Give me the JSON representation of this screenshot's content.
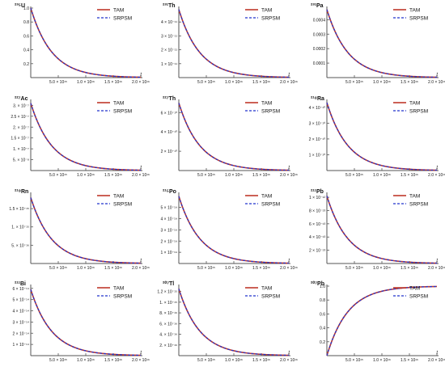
{
  "legend_labels": [
    "TAM",
    "SRPSM"
  ],
  "x_tick_labels": [
    "5.0 × 10¹⁵",
    "1.0 × 10¹⁶",
    "1.5 × 10¹⁶",
    "2.0 × 10¹⁶"
  ],
  "x_axis_label": "t",
  "colors": {
    "tam": "#c0392b",
    "srpsm": "#2233cc",
    "axis": "#555555",
    "text": "#111111"
  },
  "chart_data": [
    {
      "type": "line",
      "title": "²³⁵U",
      "xlabel": "t",
      "trend": "decay",
      "xlim": [
        0,
        2e+16
      ],
      "ylim": [
        0,
        1.0
      ],
      "yticks": [
        0.2,
        0.4,
        0.6,
        0.8,
        1.0
      ],
      "ytick_labels": [
        "0.2",
        "0.4",
        "0.6",
        "0.8",
        "1.0"
      ],
      "series": [
        {
          "name": "TAM",
          "x": [
            0,
            2500000000000000.0,
            5000000000000000.0,
            7500000000000000.0,
            1e+16,
            1.25e+16,
            1.5e+16,
            1.75e+16,
            2e+16
          ],
          "y": [
            1.0,
            0.52,
            0.27,
            0.14,
            0.07,
            0.04,
            0.02,
            0.01,
            0.005
          ]
        },
        {
          "name": "SRPSM",
          "x": [
            0,
            2500000000000000.0,
            5000000000000000.0,
            7500000000000000.0,
            1e+16,
            1.25e+16,
            1.5e+16,
            1.75e+16,
            2e+16
          ],
          "y": [
            1.0,
            0.52,
            0.27,
            0.14,
            0.07,
            0.04,
            0.02,
            0.01,
            0.005
          ]
        }
      ]
    },
    {
      "type": "line",
      "title": "²³¹Th",
      "xlabel": "t",
      "trend": "decay",
      "xlim": [
        0,
        2e+16
      ],
      "ylim": [
        0,
        5e-11
      ],
      "yticks": [
        1e-11,
        2e-11,
        3e-11,
        4e-11
      ],
      "ytick_labels": [
        "1 × 10⁻¹¹",
        "2 × 10⁻¹¹",
        "3 × 10⁻¹¹",
        "4 × 10⁻¹¹"
      ],
      "series": [
        {
          "name": "TAM",
          "x": [
            0,
            2500000000000000.0,
            5000000000000000.0,
            7500000000000000.0,
            1e+16,
            1.25e+16,
            1.5e+16,
            1.75e+16,
            2e+16
          ],
          "y": [
            4.9e-11,
            2.55e-11,
            1.32e-11,
            6.9e-12,
            3.6e-12,
            1.9e-12,
            9.8e-13,
            5.1e-13,
            2.6e-13
          ]
        },
        {
          "name": "SRPSM",
          "x": [
            0,
            2500000000000000.0,
            5000000000000000.0,
            7500000000000000.0,
            1e+16,
            1.25e+16,
            1.5e+16,
            1.75e+16,
            2e+16
          ],
          "y": [
            4.9e-11,
            2.55e-11,
            1.32e-11,
            6.9e-12,
            3.6e-12,
            1.9e-12,
            9.8e-13,
            5.1e-13,
            2.6e-13
          ]
        }
      ]
    },
    {
      "type": "line",
      "title": "²³¹Pa",
      "xlabel": "t",
      "trend": "decay",
      "xlim": [
        0,
        2e+16
      ],
      "ylim": [
        0,
        0.00048
      ],
      "yticks": [
        0.0001,
        0.0002,
        0.0003,
        0.0004
      ],
      "ytick_labels": [
        "0.0001",
        "0.0002",
        "0.0003",
        "0.0004"
      ],
      "series": [
        {
          "name": "TAM",
          "x": [
            0,
            2500000000000000.0,
            5000000000000000.0,
            7500000000000000.0,
            1e+16,
            1.25e+16,
            1.5e+16,
            1.75e+16,
            2e+16
          ],
          "y": [
            0.00047,
            0.000245,
            0.000127,
            6.6e-05,
            3.4e-05,
            1.8e-05,
            9.4e-06,
            4.9e-06,
            2.5e-06
          ]
        },
        {
          "name": "SRPSM",
          "x": [
            0,
            2500000000000000.0,
            5000000000000000.0,
            7500000000000000.0,
            1e+16,
            1.25e+16,
            1.5e+16,
            1.75e+16,
            2e+16
          ],
          "y": [
            0.00047,
            0.000245,
            0.000127,
            6.6e-05,
            3.4e-05,
            1.8e-05,
            9.4e-06,
            4.9e-06,
            2.5e-06
          ]
        }
      ]
    },
    {
      "type": "line",
      "title": "²²⁷Ac",
      "xlabel": "t",
      "trend": "decay",
      "xlim": [
        0,
        2e+16
      ],
      "ylim": [
        0,
        3.2e-07
      ],
      "yticks": [
        5e-08,
        1e-07,
        1.5e-07,
        2e-07,
        2.5e-07,
        3e-07
      ],
      "ytick_labels": [
        "5. × 10⁻⁸",
        "1. × 10⁻⁷",
        "1.5 × 10⁻⁷",
        "2. × 10⁻⁷",
        "2.5 × 10⁻⁷",
        "3. × 10⁻⁷"
      ],
      "series": [
        {
          "name": "TAM",
          "x": [
            0,
            2500000000000000.0,
            5000000000000000.0,
            7500000000000000.0,
            1e+16,
            1.25e+16,
            1.5e+16,
            1.75e+16,
            2e+16
          ],
          "y": [
            3.1e-07,
            1.61e-07,
            8.4e-08,
            4.4e-08,
            2.3e-08,
            1.2e-08,
            6.2e-09,
            3.2e-09,
            1.7e-09
          ]
        },
        {
          "name": "SRPSM",
          "x": [
            0,
            2500000000000000.0,
            5000000000000000.0,
            7500000000000000.0,
            1e+16,
            1.25e+16,
            1.5e+16,
            1.75e+16,
            2e+16
          ],
          "y": [
            3.1e-07,
            1.61e-07,
            8.4e-08,
            4.4e-08,
            2.3e-08,
            1.2e-08,
            6.2e-09,
            3.2e-09,
            1.7e-09
          ]
        }
      ]
    },
    {
      "type": "line",
      "title": "²²⁷Th",
      "xlabel": "t",
      "trend": "decay",
      "xlim": [
        0,
        2e+16
      ],
      "ylim": [
        0,
        7.2e-10
      ],
      "yticks": [
        2e-10,
        4e-10,
        6e-10
      ],
      "ytick_labels": [
        "2 × 10⁻¹⁰",
        "4 × 10⁻¹⁰",
        "6 × 10⁻¹⁰"
      ],
      "series": [
        {
          "name": "TAM",
          "x": [
            0,
            2500000000000000.0,
            5000000000000000.0,
            7500000000000000.0,
            1e+16,
            1.25e+16,
            1.5e+16,
            1.75e+16,
            2e+16
          ],
          "y": [
            7e-10,
            3.64e-10,
            1.89e-10,
            9.8e-11,
            5.1e-11,
            2.7e-11,
            1.4e-11,
            7.3e-12,
            3.8e-12
          ]
        },
        {
          "name": "SRPSM",
          "x": [
            0,
            2500000000000000.0,
            5000000000000000.0,
            7500000000000000.0,
            1e+16,
            1.25e+16,
            1.5e+16,
            1.75e+16,
            2e+16
          ],
          "y": [
            7e-10,
            3.64e-10,
            1.89e-10,
            9.8e-11,
            5.1e-11,
            2.7e-11,
            1.4e-11,
            7.3e-12,
            3.8e-12
          ]
        }
      ]
    },
    {
      "type": "line",
      "title": "²¹⁸Ra",
      "xlabel": "t",
      "trend": "decay",
      "xlim": [
        0,
        2e+16
      ],
      "ylim": [
        0,
        4.4e-10
      ],
      "yticks": [
        1e-10,
        2e-10,
        3e-10,
        4e-10
      ],
      "ytick_labels": [
        "1 × 10⁻¹⁰",
        "2 × 10⁻¹⁰",
        "3 × 10⁻¹⁰",
        "4 × 10⁻¹⁰"
      ],
      "series": [
        {
          "name": "TAM",
          "x": [
            0,
            2500000000000000.0,
            5000000000000000.0,
            7500000000000000.0,
            1e+16,
            1.25e+16,
            1.5e+16,
            1.75e+16,
            2e+16
          ],
          "y": [
            4.3e-10,
            2.24e-10,
            1.16e-10,
            6e-11,
            3.1e-11,
            1.6e-11,
            8.5e-12,
            4.4e-12,
            2.3e-12
          ]
        },
        {
          "name": "SRPSM",
          "x": [
            0,
            2500000000000000.0,
            5000000000000000.0,
            7500000000000000.0,
            1e+16,
            1.25e+16,
            1.5e+16,
            1.75e+16,
            2e+16
          ],
          "y": [
            4.3e-10,
            2.24e-10,
            1.16e-10,
            6e-11,
            3.1e-11,
            1.6e-11,
            8.5e-12,
            4.4e-12,
            2.3e-12
          ]
        }
      ]
    },
    {
      "type": "line",
      "title": "²¹⁹Rn",
      "xlabel": "t",
      "trend": "decay",
      "xlim": [
        0,
        2e+16
      ],
      "ylim": [
        0,
        1.9e-15
      ],
      "yticks": [
        5e-16,
        1e-15,
        1.5e-15
      ],
      "ytick_labels": [
        "5. × 10⁻¹⁶",
        "1. × 10⁻¹⁵",
        "1.5 × 10⁻¹⁵"
      ],
      "series": [
        {
          "name": "TAM",
          "x": [
            0,
            2500000000000000.0,
            5000000000000000.0,
            7500000000000000.0,
            1e+16,
            1.25e+16,
            1.5e+16,
            1.75e+16,
            2e+16
          ],
          "y": [
            1.8e-15,
            9.4e-16,
            4.9e-16,
            2.5e-16,
            1.3e-16,
            6.9e-17,
            3.6e-17,
            1.9e-17,
            9.7e-18
          ]
        },
        {
          "name": "SRPSM",
          "x": [
            0,
            2500000000000000.0,
            5000000000000000.0,
            7500000000000000.0,
            1e+16,
            1.25e+16,
            1.5e+16,
            1.75e+16,
            2e+16
          ],
          "y": [
            1.8e-15,
            9.4e-16,
            4.9e-16,
            2.5e-16,
            1.3e-16,
            6.9e-17,
            3.6e-17,
            1.9e-17,
            9.7e-18
          ]
        }
      ]
    },
    {
      "type": "line",
      "title": "²¹⁵Po",
      "xlabel": "t",
      "trend": "decay",
      "xlim": [
        0,
        2e+16
      ],
      "ylim": [
        0,
        6.2e-19
      ],
      "yticks": [
        1e-19,
        2e-19,
        3e-19,
        4e-19,
        5e-19
      ],
      "ytick_labels": [
        "1 × 10⁻¹⁹",
        "2 × 10⁻¹⁹",
        "3 × 10⁻¹⁹",
        "4 × 10⁻¹⁹",
        "5 × 10⁻¹⁹"
      ],
      "series": [
        {
          "name": "TAM",
          "x": [
            0,
            2500000000000000.0,
            5000000000000000.0,
            7500000000000000.0,
            1e+16,
            1.25e+16,
            1.5e+16,
            1.75e+16,
            2e+16
          ],
          "y": [
            6e-19,
            3.1e-19,
            1.6e-19,
            8.4e-20,
            4.4e-20,
            2.3e-20,
            1.2e-20,
            6.2e-21,
            3.2e-21
          ]
        },
        {
          "name": "SRPSM",
          "x": [
            0,
            2500000000000000.0,
            5000000000000000.0,
            7500000000000000.0,
            1e+16,
            1.25e+16,
            1.5e+16,
            1.75e+16,
            2e+16
          ],
          "y": [
            6e-19,
            3.1e-19,
            1.6e-19,
            8.4e-20,
            4.4e-20,
            2.3e-20,
            1.2e-20,
            6.2e-21,
            3.2e-21
          ]
        }
      ]
    },
    {
      "type": "line",
      "title": "²¹¹Pb",
      "xlabel": "t",
      "trend": "decay",
      "xlim": [
        0,
        2e+16
      ],
      "ylim": [
        0,
        1.05e-12
      ],
      "yticks": [
        2e-13,
        4e-13,
        6e-13,
        8e-13,
        1e-12
      ],
      "ytick_labels": [
        "2 × 10⁻¹³",
        "4 × 10⁻¹³",
        "6 × 10⁻¹³",
        "8 × 10⁻¹³",
        "1 × 10⁻¹²"
      ],
      "series": [
        {
          "name": "TAM",
          "x": [
            0,
            2500000000000000.0,
            5000000000000000.0,
            7500000000000000.0,
            1e+16,
            1.25e+16,
            1.5e+16,
            1.75e+16,
            2e+16
          ],
          "y": [
            1.02e-12,
            5.3e-13,
            2.76e-13,
            1.43e-13,
            7.5e-14,
            3.9e-14,
            2e-14,
            1.05e-14,
            5.5e-15
          ]
        },
        {
          "name": "SRPSM",
          "x": [
            0,
            2500000000000000.0,
            5000000000000000.0,
            7500000000000000.0,
            1e+16,
            1.25e+16,
            1.5e+16,
            1.75e+16,
            2e+16
          ],
          "y": [
            1.02e-12,
            5.3e-13,
            2.76e-13,
            1.43e-13,
            7.5e-14,
            3.9e-14,
            2e-14,
            1.05e-14,
            5.5e-15
          ]
        }
      ]
    },
    {
      "type": "line",
      "title": "²¹¹Bi",
      "xlabel": "t",
      "trend": "decay",
      "xlim": [
        0,
        2e+16
      ],
      "ylim": [
        0,
        6.2e-14
      ],
      "yticks": [
        1e-14,
        2e-14,
        3e-14,
        4e-14,
        5e-14,
        6e-14
      ],
      "ytick_labels": [
        "1 × 10⁻¹⁴",
        "2 × 10⁻¹⁴",
        "3 × 10⁻¹⁴",
        "4 × 10⁻¹⁴",
        "5 × 10⁻¹⁴",
        "6 × 10⁻¹⁴"
      ],
      "series": [
        {
          "name": "TAM",
          "x": [
            0,
            2500000000000000.0,
            5000000000000000.0,
            7500000000000000.0,
            1e+16,
            1.25e+16,
            1.5e+16,
            1.75e+16,
            2e+16
          ],
          "y": [
            5.9e-14,
            3.07e-14,
            1.6e-14,
            8.3e-15,
            4.3e-15,
            2.25e-15,
            1.17e-15,
            6.1e-16,
            3.2e-16
          ]
        },
        {
          "name": "SRPSM",
          "x": [
            0,
            2500000000000000.0,
            5000000000000000.0,
            7500000000000000.0,
            1e+16,
            1.25e+16,
            1.5e+16,
            1.75e+16,
            2e+16
          ],
          "y": [
            5.9e-14,
            3.07e-14,
            1.6e-14,
            8.3e-15,
            4.3e-15,
            2.25e-15,
            1.17e-15,
            6.1e-16,
            3.2e-16
          ]
        }
      ]
    },
    {
      "type": "line",
      "title": "²⁰⁷Tl",
      "xlabel": "t",
      "trend": "decay",
      "xlim": [
        0,
        2e+16
      ],
      "ylim": [
        0,
        1.3e-15
      ],
      "yticks": [
        2e-16,
        4e-16,
        6e-16,
        8e-16,
        1e-15,
        1.2e-15
      ],
      "ytick_labels": [
        "2. × 10⁻¹⁶",
        "4. × 10⁻¹⁶",
        "6. × 10⁻¹⁶",
        "8. × 10⁻¹⁶",
        "1. × 10⁻¹⁵",
        "1.2 × 10⁻¹⁵"
      ],
      "series": [
        {
          "name": "TAM",
          "x": [
            0,
            2500000000000000.0,
            5000000000000000.0,
            7500000000000000.0,
            1e+16,
            1.25e+16,
            1.5e+16,
            1.75e+16,
            2e+16
          ],
          "y": [
            1.25e-15,
            6.5e-16,
            3.4e-16,
            1.76e-16,
            9.2e-17,
            4.8e-17,
            2.5e-17,
            1.3e-17,
            6.7e-18
          ]
        },
        {
          "name": "SRPSM",
          "x": [
            0,
            2500000000000000.0,
            5000000000000000.0,
            7500000000000000.0,
            1e+16,
            1.25e+16,
            1.5e+16,
            1.75e+16,
            2e+16
          ],
          "y": [
            1.25e-15,
            6.5e-16,
            3.4e-16,
            1.76e-16,
            9.2e-17,
            4.8e-17,
            2.5e-17,
            1.3e-17,
            6.7e-18
          ]
        }
      ]
    },
    {
      "type": "line",
      "title": "²⁰⁷Pb",
      "xlabel": "t",
      "trend": "growth",
      "xlim": [
        0,
        2e+16
      ],
      "ylim": [
        0,
        1.0
      ],
      "yticks": [
        0.2,
        0.4,
        0.6,
        0.8,
        1.0
      ],
      "ytick_labels": [
        "0.2",
        "0.4",
        "0.6",
        "0.8",
        "1.0"
      ],
      "series": [
        {
          "name": "TAM",
          "x": [
            0,
            2500000000000000.0,
            5000000000000000.0,
            7500000000000000.0,
            1e+16,
            1.25e+16,
            1.5e+16,
            1.75e+16,
            2e+16
          ],
          "y": [
            0.0,
            0.48,
            0.73,
            0.86,
            0.93,
            0.96,
            0.98,
            0.99,
            0.995
          ]
        },
        {
          "name": "SRPSM",
          "x": [
            0,
            2500000000000000.0,
            5000000000000000.0,
            7500000000000000.0,
            1e+16,
            1.25e+16,
            1.5e+16,
            1.75e+16,
            2e+16
          ],
          "y": [
            0.0,
            0.48,
            0.73,
            0.86,
            0.93,
            0.96,
            0.98,
            0.99,
            0.995
          ]
        }
      ]
    }
  ]
}
